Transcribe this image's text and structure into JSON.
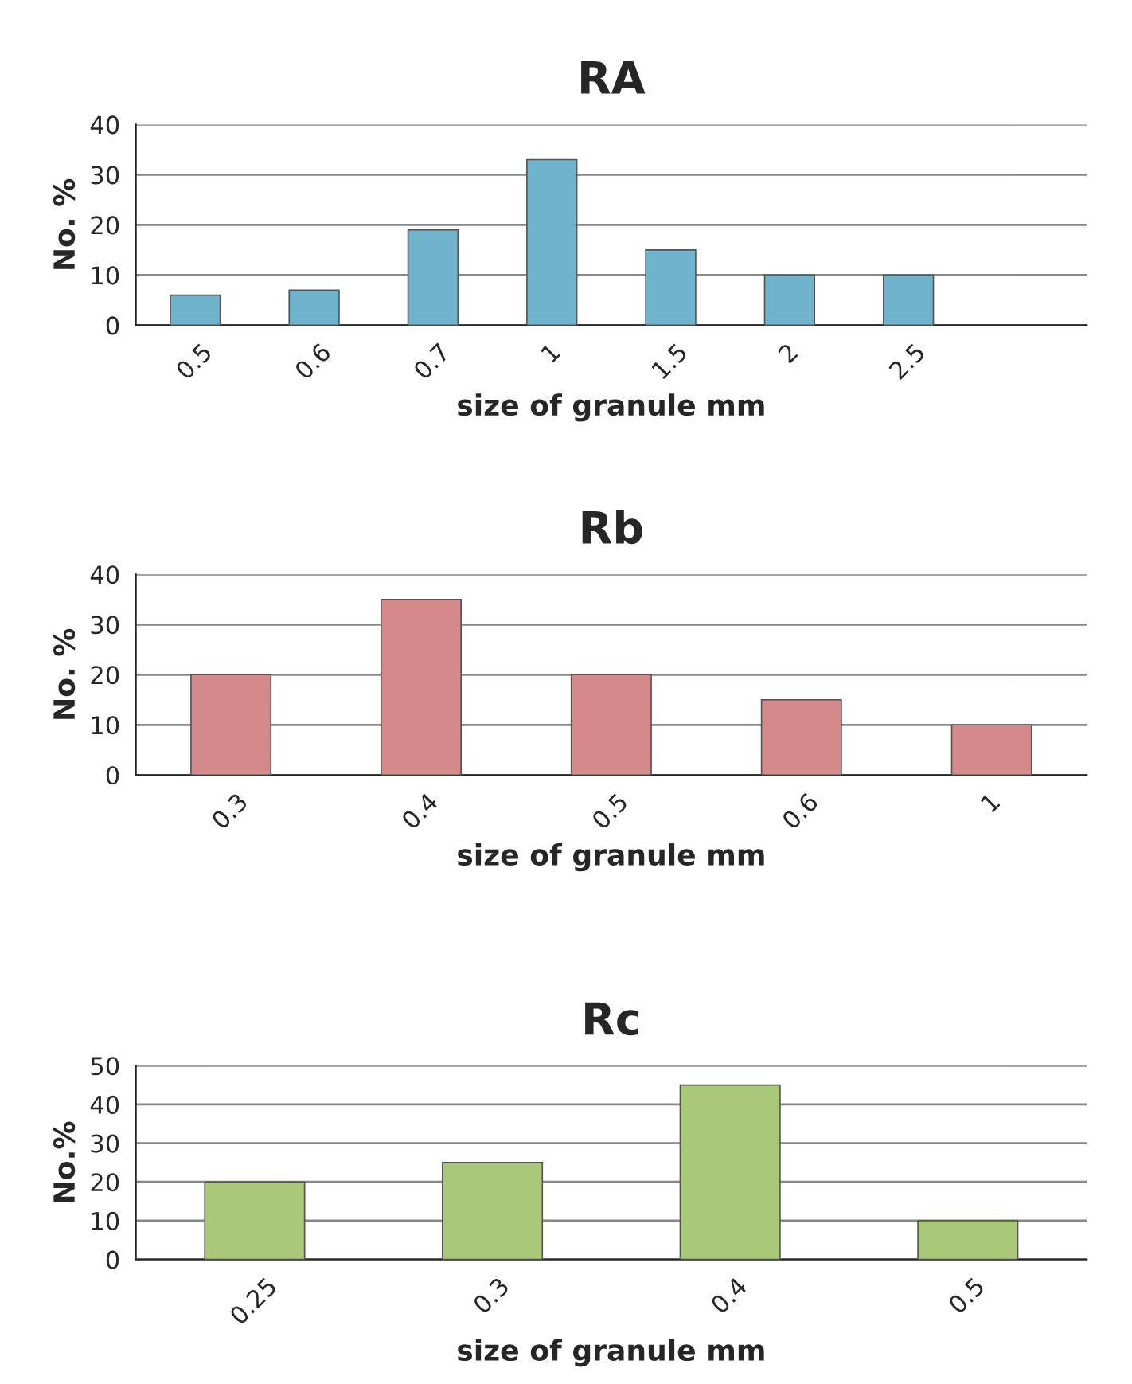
{
  "chart_data": [
    {
      "type": "bar",
      "title": "RA",
      "xlabel": "size of granule mm",
      "ylabel": "No. %",
      "categories": [
        "0.5",
        "0.6",
        "0.7",
        "1",
        "1.5",
        "2",
        "2.5",
        null
      ],
      "values": [
        6,
        7,
        19,
        33,
        15,
        10,
        10,
        null
      ],
      "color": "#6fb3cc",
      "ylim": [
        0,
        40
      ],
      "yticks": [
        0,
        10,
        20,
        30,
        40
      ],
      "grid": "y",
      "legend": false
    },
    {
      "type": "bar",
      "title": "Rb",
      "xlabel": "size of granule mm",
      "ylabel": "No. %",
      "categories": [
        "0.3",
        "0.4",
        "0.5",
        "0.6",
        "1"
      ],
      "values": [
        20,
        35,
        20,
        15,
        10
      ],
      "color": "#d48a8a",
      "ylim": [
        0,
        40
      ],
      "yticks": [
        0,
        10,
        20,
        30,
        40
      ],
      "grid": "y",
      "legend": false
    },
    {
      "type": "bar",
      "title": "Rc",
      "xlabel": "size of granule mm",
      "ylabel": "No.%",
      "categories": [
        "0.25",
        "0.3",
        "0.4",
        "0.5"
      ],
      "values": [
        20,
        25,
        45,
        10
      ],
      "color": "#a9c878",
      "ylim": [
        0,
        50
      ],
      "yticks": [
        0,
        10,
        20,
        30,
        40,
        50
      ],
      "grid": "y",
      "legend": false
    }
  ]
}
